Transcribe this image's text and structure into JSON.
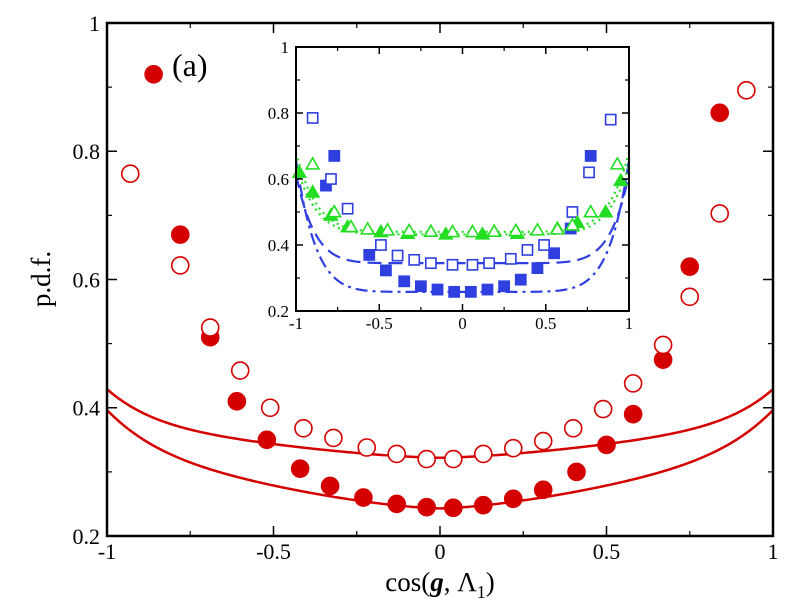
{
  "chart_data": [
    {
      "id": "main",
      "type": "line",
      "panel_label": "(a)",
      "xlabel_parts": [
        "cos(",
        "g",
        ", Λ",
        "1",
        ")"
      ],
      "ylabel": "p.d.f.",
      "xlim": [
        -1,
        1
      ],
      "ylim": [
        0.2,
        1.0
      ],
      "xticks": [
        -1,
        -0.5,
        0,
        0.5,
        1
      ],
      "xtick_labels": [
        "-1",
        "-0.5",
        "0",
        "0.5",
        "1"
      ],
      "yticks": [
        0.2,
        0.4,
        0.6,
        0.8,
        1.0
      ],
      "ytick_labels": [
        "0.2",
        "0.4",
        "0.6",
        "0.8",
        "1"
      ],
      "series": [
        {
          "name": "filled circles",
          "color": "#d40000",
          "marker": "circle",
          "filled": true,
          "curve": {
            "a": 0.243,
            "b": 0.0535,
            "p": 7.2,
            "c": 0.1,
            "q": 1.5,
            "cap": 1.0
          },
          "points": [
            {
              "x": -0.86,
              "y": 0.92
            },
            {
              "x": -0.78,
              "y": 0.67
            },
            {
              "x": -0.69,
              "y": 0.51
            },
            {
              "x": -0.61,
              "y": 0.41
            },
            {
              "x": -0.52,
              "y": 0.35
            },
            {
              "x": -0.42,
              "y": 0.305
            },
            {
              "x": -0.33,
              "y": 0.278
            },
            {
              "x": -0.23,
              "y": 0.26
            },
            {
              "x": -0.13,
              "y": 0.25
            },
            {
              "x": -0.04,
              "y": 0.245
            },
            {
              "x": 0.04,
              "y": 0.244
            },
            {
              "x": 0.13,
              "y": 0.248
            },
            {
              "x": 0.22,
              "y": 0.258
            },
            {
              "x": 0.31,
              "y": 0.272
            },
            {
              "x": 0.41,
              "y": 0.3
            },
            {
              "x": 0.5,
              "y": 0.342
            },
            {
              "x": 0.58,
              "y": 0.39
            },
            {
              "x": 0.67,
              "y": 0.475
            },
            {
              "x": 0.75,
              "y": 0.62
            },
            {
              "x": 0.84,
              "y": 0.86
            }
          ]
        },
        {
          "name": "open circles",
          "color": "#d40000",
          "marker": "circle",
          "filled": false,
          "curve": {
            "a": 0.322,
            "b": 0.047,
            "p": 7.8,
            "c": 0.06,
            "q": 1.5,
            "cap": 1.0
          },
          "points": [
            {
              "x": -0.93,
              "y": 0.765
            },
            {
              "x": -0.78,
              "y": 0.622
            },
            {
              "x": -0.69,
              "y": 0.525
            },
            {
              "x": -0.6,
              "y": 0.458
            },
            {
              "x": -0.51,
              "y": 0.4
            },
            {
              "x": -0.41,
              "y": 0.368
            },
            {
              "x": -0.32,
              "y": 0.353
            },
            {
              "x": -0.22,
              "y": 0.338
            },
            {
              "x": -0.13,
              "y": 0.328
            },
            {
              "x": -0.04,
              "y": 0.32
            },
            {
              "x": 0.04,
              "y": 0.32
            },
            {
              "x": 0.13,
              "y": 0.328
            },
            {
              "x": 0.22,
              "y": 0.337
            },
            {
              "x": 0.31,
              "y": 0.348
            },
            {
              "x": 0.4,
              "y": 0.368
            },
            {
              "x": 0.49,
              "y": 0.398
            },
            {
              "x": 0.58,
              "y": 0.438
            },
            {
              "x": 0.67,
              "y": 0.498
            },
            {
              "x": 0.75,
              "y": 0.573
            },
            {
              "x": 0.84,
              "y": 0.703
            },
            {
              "x": 0.92,
              "y": 0.895
            }
          ]
        }
      ]
    },
    {
      "id": "inset",
      "type": "line",
      "xlim": [
        -1,
        1
      ],
      "ylim": [
        0.2,
        1.0
      ],
      "xticks": [
        -1,
        -0.5,
        0,
        0.5,
        1
      ],
      "xtick_labels": [
        "-1",
        "-0.5",
        "0",
        "0.5",
        "1"
      ],
      "yticks": [
        0.2,
        0.4,
        0.6,
        0.8,
        1.0
      ],
      "ytick_labels": [
        "0.2",
        "0.4",
        "0.6",
        "0.8",
        "1"
      ],
      "series": [
        {
          "name": "blue filled squares",
          "color": "#2f3fe0",
          "marker": "square",
          "filled": true,
          "line": "dash-dot",
          "curve": {
            "a": 0.258,
            "b": 0.4,
            "p": 8.5,
            "c": 0.0,
            "q": 2,
            "cap": 1.0
          },
          "points": [
            {
              "x": -0.82,
              "y": 0.58
            },
            {
              "x": -0.77,
              "y": 0.67
            },
            {
              "x": -0.56,
              "y": 0.37
            },
            {
              "x": -0.46,
              "y": 0.323
            },
            {
              "x": -0.35,
              "y": 0.29
            },
            {
              "x": -0.25,
              "y": 0.275
            },
            {
              "x": -0.15,
              "y": 0.265
            },
            {
              "x": -0.05,
              "y": 0.258
            },
            {
              "x": 0.05,
              "y": 0.258
            },
            {
              "x": 0.15,
              "y": 0.265
            },
            {
              "x": 0.25,
              "y": 0.275
            },
            {
              "x": 0.35,
              "y": 0.295
            },
            {
              "x": 0.45,
              "y": 0.33
            },
            {
              "x": 0.55,
              "y": 0.375
            },
            {
              "x": 0.65,
              "y": 0.45
            },
            {
              "x": 0.77,
              "y": 0.67
            }
          ]
        },
        {
          "name": "blue open squares",
          "color": "#2f3fe0",
          "marker": "square",
          "filled": false,
          "line": "dash",
          "curve": {
            "a": 0.345,
            "b": 0.27,
            "p": 9,
            "c": 0.0,
            "q": 2,
            "cap": 1.0
          },
          "points": [
            {
              "x": -0.9,
              "y": 0.785
            },
            {
              "x": -0.79,
              "y": 0.6
            },
            {
              "x": -0.69,
              "y": 0.51
            },
            {
              "x": -0.49,
              "y": 0.4
            },
            {
              "x": -0.39,
              "y": 0.368
            },
            {
              "x": -0.29,
              "y": 0.355
            },
            {
              "x": -0.19,
              "y": 0.345
            },
            {
              "x": -0.06,
              "y": 0.34
            },
            {
              "x": 0.06,
              "y": 0.34
            },
            {
              "x": 0.16,
              "y": 0.345
            },
            {
              "x": 0.29,
              "y": 0.358
            },
            {
              "x": 0.39,
              "y": 0.385
            },
            {
              "x": 0.49,
              "y": 0.4
            },
            {
              "x": 0.66,
              "y": 0.5
            },
            {
              "x": 0.76,
              "y": 0.62
            },
            {
              "x": 0.89,
              "y": 0.78
            }
          ]
        },
        {
          "name": "green filled triangles",
          "color": "#22dd22",
          "marker": "triangle",
          "filled": true,
          "line": "dot",
          "curve": {
            "a": 0.432,
            "b": 0.21,
            "p": 8,
            "c": 0.0,
            "q": 2,
            "cap": 1.0
          },
          "points": [
            {
              "x": -0.98,
              "y": 0.62
            },
            {
              "x": -0.9,
              "y": 0.56
            },
            {
              "x": -0.79,
              "y": 0.49
            },
            {
              "x": -0.69,
              "y": 0.455
            },
            {
              "x": -0.49,
              "y": 0.44
            },
            {
              "x": -0.33,
              "y": 0.435
            },
            {
              "x": -0.1,
              "y": 0.433
            },
            {
              "x": 0.12,
              "y": 0.433
            },
            {
              "x": 0.33,
              "y": 0.435
            },
            {
              "x": 0.57,
              "y": 0.45
            },
            {
              "x": 0.69,
              "y": 0.468
            },
            {
              "x": 0.86,
              "y": 0.5
            },
            {
              "x": 0.95,
              "y": 0.595
            }
          ]
        },
        {
          "name": "green open triangles",
          "color": "#22dd22",
          "marker": "triangle",
          "filled": false,
          "line": "dot",
          "curve": {
            "a": 0.44,
            "b": 0.24,
            "p": 8,
            "c": 0.0,
            "q": 2,
            "cap": 1.0
          },
          "points": [
            {
              "x": -0.9,
              "y": 0.645
            },
            {
              "x": -0.77,
              "y": 0.5
            },
            {
              "x": -0.67,
              "y": 0.455
            },
            {
              "x": -0.57,
              "y": 0.448
            },
            {
              "x": -0.45,
              "y": 0.445
            },
            {
              "x": -0.32,
              "y": 0.443
            },
            {
              "x": -0.19,
              "y": 0.441
            },
            {
              "x": -0.06,
              "y": 0.44
            },
            {
              "x": 0.06,
              "y": 0.44
            },
            {
              "x": 0.19,
              "y": 0.441
            },
            {
              "x": 0.32,
              "y": 0.443
            },
            {
              "x": 0.45,
              "y": 0.445
            },
            {
              "x": 0.57,
              "y": 0.448
            },
            {
              "x": 0.66,
              "y": 0.46
            },
            {
              "x": 0.77,
              "y": 0.5
            },
            {
              "x": 0.93,
              "y": 0.645
            }
          ]
        }
      ]
    }
  ]
}
